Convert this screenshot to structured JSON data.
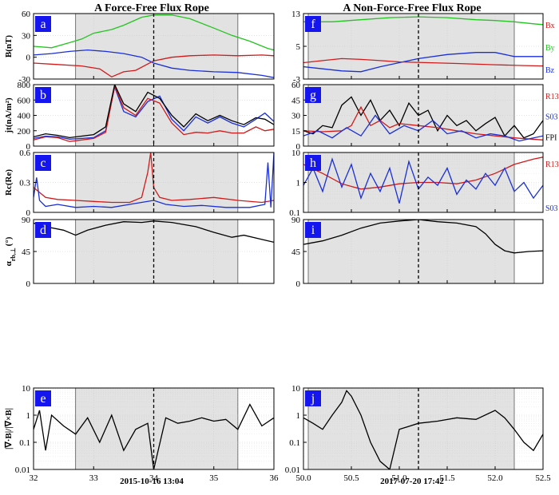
{
  "titles": {
    "left": "A Force-Free Flux Rope",
    "right": "A Non-Force-Free Flux Rope"
  },
  "xlabels": {
    "left": "2015-10-16 13:04",
    "right": "2017-07-20 17:42"
  },
  "colors": {
    "red": "#d11a1a",
    "green": "#22c41f",
    "blue": "#1a2fd6",
    "black": "#000000",
    "shade": "#e2e2e2",
    "label_bg": "#1515f0"
  },
  "chart_data": [
    {
      "id": "a",
      "type": "line",
      "column": "left",
      "row": 0,
      "label": "a",
      "ylabel": "B(nT)",
      "xlim": [
        32,
        36
      ],
      "ylim": [
        -30,
        60
      ],
      "yticks": [
        -30,
        0,
        30,
        60
      ],
      "shade": [
        32.7,
        35.4
      ],
      "vline": 34.0,
      "series": [
        {
          "color": "green",
          "x": [
            32,
            32.3,
            32.6,
            32.8,
            33.0,
            33.3,
            33.5,
            33.8,
            34.0,
            34.3,
            34.6,
            35.0,
            35.3,
            35.6,
            35.9,
            36.0
          ],
          "y": [
            15,
            13,
            20,
            25,
            33,
            38,
            44,
            55,
            58,
            58,
            53,
            40,
            30,
            22,
            12,
            10
          ]
        },
        {
          "color": "blue",
          "x": [
            32,
            32.3,
            32.6,
            32.9,
            33.2,
            33.5,
            33.8,
            34.0,
            34.3,
            34.6,
            35.0,
            35.4,
            35.8,
            36.0
          ],
          "y": [
            3,
            5,
            8,
            10,
            8,
            5,
            0,
            -8,
            -15,
            -18,
            -20,
            -21,
            -25,
            -28
          ]
        },
        {
          "color": "red",
          "x": [
            32,
            32.4,
            32.8,
            33.1,
            33.3,
            33.5,
            33.7,
            34.0,
            34.3,
            34.6,
            35.0,
            35.4,
            35.8,
            36.0
          ],
          "y": [
            -8,
            -10,
            -12,
            -16,
            -27,
            -20,
            -18,
            -5,
            0,
            2,
            3,
            2,
            3,
            2
          ]
        }
      ]
    },
    {
      "id": "b",
      "type": "line",
      "column": "left",
      "row": 1,
      "label": "b",
      "ylabel": "jt(nA/m²)",
      "xlim": [
        32,
        36
      ],
      "ylim": [
        0,
        800
      ],
      "yticks": [
        0,
        200,
        400,
        600,
        800
      ],
      "shade": [
        32.7,
        35.4
      ],
      "vline": 34.0,
      "series": [
        {
          "color": "blue",
          "x": [
            32,
            32.2,
            32.4,
            32.6,
            32.8,
            33.0,
            33.2,
            33.35,
            33.5,
            33.7,
            33.9,
            34.1,
            34.3,
            34.5,
            34.7,
            34.9,
            35.1,
            35.3,
            35.5,
            35.7,
            35.85,
            36.0
          ],
          "y": [
            100,
            130,
            120,
            90,
            100,
            110,
            200,
            770,
            450,
            380,
            580,
            650,
            350,
            200,
            380,
            300,
            380,
            300,
            250,
            350,
            430,
            320
          ]
        },
        {
          "color": "red",
          "x": [
            32,
            32.2,
            32.4,
            32.6,
            32.8,
            33.0,
            33.2,
            33.35,
            33.5,
            33.7,
            33.9,
            34.1,
            34.3,
            34.5,
            34.7,
            34.9,
            35.1,
            35.3,
            35.5,
            35.7,
            35.85,
            36.0
          ],
          "y": [
            80,
            120,
            110,
            60,
            80,
            100,
            180,
            780,
            500,
            400,
            620,
            560,
            300,
            150,
            180,
            170,
            200,
            170,
            170,
            250,
            200,
            220
          ]
        },
        {
          "color": "black",
          "x": [
            32,
            32.2,
            32.4,
            32.6,
            32.8,
            33.0,
            33.2,
            33.35,
            33.5,
            33.7,
            33.9,
            34.1,
            34.3,
            34.5,
            34.7,
            34.9,
            35.1,
            35.3,
            35.5,
            35.7,
            35.85,
            36.0
          ],
          "y": [
            120,
            160,
            140,
            110,
            130,
            150,
            250,
            800,
            550,
            450,
            700,
            620,
            400,
            250,
            420,
            330,
            400,
            330,
            280,
            370,
            350,
            280
          ]
        }
      ]
    },
    {
      "id": "c",
      "type": "line",
      "column": "left",
      "row": 2,
      "label": "c",
      "ylabel": "Rc(Re)",
      "xlim": [
        32,
        36
      ],
      "ylim": [
        0,
        0.6
      ],
      "yticks": [
        0,
        0.3,
        0.6
      ],
      "shade": [
        32.7,
        35.4
      ],
      "vline": 34.0,
      "series": [
        {
          "color": "red",
          "x": [
            32,
            32.1,
            32.2,
            32.4,
            32.7,
            33.0,
            33.3,
            33.6,
            33.8,
            33.9,
            33.95,
            34.0,
            34.1,
            34.3,
            34.6,
            35.0,
            35.4,
            35.8,
            36.0
          ],
          "y": [
            0.25,
            0.2,
            0.15,
            0.13,
            0.12,
            0.11,
            0.1,
            0.1,
            0.15,
            0.4,
            0.6,
            0.25,
            0.15,
            0.12,
            0.13,
            0.15,
            0.12,
            0.1,
            0.12
          ]
        },
        {
          "color": "blue",
          "x": [
            32,
            32.05,
            32.1,
            32.2,
            32.4,
            32.7,
            33.0,
            33.3,
            33.6,
            33.8,
            34.0,
            34.2,
            34.5,
            34.8,
            35.2,
            35.6,
            35.85,
            35.9,
            35.95,
            36.0
          ],
          "y": [
            0.15,
            0.35,
            0.12,
            0.06,
            0.08,
            0.05,
            0.06,
            0.05,
            0.08,
            0.1,
            0.12,
            0.08,
            0.06,
            0.07,
            0.05,
            0.05,
            0.08,
            0.5,
            0.05,
            0.6
          ]
        }
      ]
    },
    {
      "id": "d",
      "type": "line",
      "column": "left",
      "row": 3,
      "label": "d",
      "ylabel": "α (°)",
      "ylabel_parts": {
        "greek": "α",
        "sub": "rb,⊥",
        "unit": "(°)"
      },
      "xlim": [
        32,
        36
      ],
      "ylim": [
        0,
        90
      ],
      "yticks": [
        0,
        45,
        90
      ],
      "shade": [
        32.7,
        35.4
      ],
      "vline": 34.0,
      "series": [
        {
          "color": "black",
          "x": [
            32,
            32.2,
            32.5,
            32.7,
            32.9,
            33.2,
            33.5,
            33.8,
            34.0,
            34.3,
            34.7,
            35.0,
            35.3,
            35.5,
            35.8,
            36.0
          ],
          "y": [
            85,
            80,
            75,
            68,
            75,
            82,
            87,
            86,
            88,
            86,
            80,
            72,
            65,
            68,
            62,
            58
          ]
        }
      ]
    },
    {
      "id": "e",
      "type": "line",
      "column": "left",
      "row": 4,
      "label": "e",
      "scale": "log",
      "ylabel": "|∇·B|/|∇×B|",
      "xlim": [
        32,
        36
      ],
      "ylim": [
        0.01,
        10
      ],
      "yticks": [
        0.01,
        0.1,
        1,
        10
      ],
      "shade": [
        32.7,
        35.4
      ],
      "vline": 34.0,
      "series": [
        {
          "color": "black",
          "x": [
            32,
            32.1,
            32.2,
            32.3,
            32.5,
            32.7,
            32.9,
            33.1,
            33.3,
            33.5,
            33.7,
            33.9,
            34.0,
            34.2,
            34.4,
            34.6,
            34.8,
            35.0,
            35.2,
            35.4,
            35.6,
            35.8,
            36.0
          ],
          "y": [
            0.3,
            1.5,
            0.05,
            1.0,
            0.4,
            0.2,
            0.8,
            0.1,
            1.0,
            0.05,
            0.3,
            0.5,
            0.01,
            0.8,
            0.5,
            0.6,
            0.8,
            0.6,
            0.7,
            0.3,
            2.5,
            0.4,
            0.8
          ]
        }
      ]
    },
    {
      "id": "f",
      "type": "line",
      "column": "right",
      "row": 0,
      "label": "f",
      "ylabel": "",
      "xlim": [
        50,
        52.5
      ],
      "ylim": [
        -3,
        13
      ],
      "yticks": [
        -3,
        5,
        13
      ],
      "shade": [
        50.05,
        52.2
      ],
      "vline": 51.2,
      "legend": [
        {
          "text": "Bx",
          "color": "red"
        },
        {
          "text": "By",
          "color": "green"
        },
        {
          "text": "Bz",
          "color": "blue"
        }
      ],
      "series": [
        {
          "color": "green",
          "x": [
            50,
            50.3,
            50.6,
            50.9,
            51.2,
            51.5,
            51.8,
            52.0,
            52.2,
            52.4,
            52.5
          ],
          "y": [
            11,
            11,
            11.5,
            12,
            12.2,
            12,
            11.5,
            11.3,
            11,
            10.5,
            10.3
          ]
        },
        {
          "color": "blue",
          "x": [
            50,
            50.2,
            50.4,
            50.6,
            50.8,
            51.0,
            51.2,
            51.5,
            51.8,
            52.0,
            52.2,
            52.5
          ],
          "y": [
            0,
            -0.5,
            -1,
            -1.2,
            0,
            1,
            2,
            3,
            3.5,
            3.5,
            2.5,
            2.5
          ]
        },
        {
          "color": "red",
          "x": [
            50,
            50.2,
            50.4,
            50.6,
            50.8,
            51.0,
            51.3,
            51.6,
            52.0,
            52.3,
            52.5
          ],
          "y": [
            1,
            1.5,
            2,
            1.8,
            1.5,
            1.2,
            1,
            0.8,
            0.5,
            0.3,
            0.2
          ]
        }
      ]
    },
    {
      "id": "g",
      "type": "line",
      "column": "right",
      "row": 1,
      "label": "g",
      "ylabel": "",
      "xlim": [
        50,
        52.5
      ],
      "ylim": [
        0,
        60
      ],
      "yticks": [
        0,
        15,
        30,
        45,
        60
      ],
      "shade": [
        50.05,
        52.2
      ],
      "vline": 51.2,
      "legend": [
        {
          "text": "R13",
          "color": "red"
        },
        {
          "text": "S03",
          "color": "blue"
        },
        {
          "text": "FPI",
          "color": "black"
        }
      ],
      "series": [
        {
          "color": "black",
          "x": [
            50,
            50.1,
            50.2,
            50.3,
            50.4,
            50.5,
            50.6,
            50.7,
            50.8,
            50.9,
            51.0,
            51.1,
            51.2,
            51.3,
            51.4,
            51.5,
            51.6,
            51.7,
            51.8,
            51.9,
            52.0,
            52.1,
            52.2,
            52.3,
            52.4,
            52.5
          ],
          "y": [
            15,
            12,
            20,
            18,
            40,
            48,
            30,
            45,
            25,
            35,
            20,
            42,
            30,
            35,
            15,
            30,
            20,
            25,
            15,
            22,
            28,
            10,
            20,
            8,
            12,
            25
          ]
        },
        {
          "color": "red",
          "x": [
            50,
            50.2,
            50.4,
            50.5,
            50.6,
            50.7,
            50.8,
            50.9,
            51.0,
            51.2,
            51.4,
            51.6,
            51.8,
            52.0,
            52.2,
            52.5
          ],
          "y": [
            15,
            14,
            15,
            20,
            38,
            20,
            25,
            18,
            22,
            20,
            18,
            15,
            12,
            10,
            8,
            6
          ]
        },
        {
          "color": "blue",
          "x": [
            50,
            50.15,
            50.3,
            50.45,
            50.6,
            50.75,
            50.9,
            51.05,
            51.2,
            51.35,
            51.5,
            51.65,
            51.8,
            51.95,
            52.1,
            52.25,
            52.4,
            52.5
          ],
          "y": [
            10,
            15,
            8,
            18,
            10,
            30,
            12,
            20,
            15,
            25,
            12,
            15,
            8,
            12,
            10,
            5,
            8,
            10
          ]
        }
      ]
    },
    {
      "id": "h",
      "type": "line",
      "column": "right",
      "row": 2,
      "label": "h",
      "scale": "log",
      "ylabel": "",
      "xlim": [
        50,
        52.5
      ],
      "ylim": [
        0.1,
        10
      ],
      "yticks": [
        0.1,
        1,
        10
      ],
      "shade": [
        50.05,
        52.2
      ],
      "vline": 51.2,
      "legend": [
        {
          "text": "R13",
          "color": "red"
        },
        {
          "text": "S03",
          "color": "blue"
        }
      ],
      "series": [
        {
          "color": "red",
          "x": [
            50,
            50.2,
            50.4,
            50.6,
            50.8,
            51.0,
            51.2,
            51.4,
            51.6,
            51.8,
            52.0,
            52.2,
            52.4,
            52.5
          ],
          "y": [
            4,
            2,
            0.9,
            0.6,
            0.7,
            0.9,
            1.0,
            1.0,
            0.9,
            1.2,
            2,
            4,
            6,
            7
          ]
        },
        {
          "color": "blue",
          "x": [
            50,
            50.1,
            50.2,
            50.3,
            50.4,
            50.5,
            50.6,
            50.7,
            50.8,
            50.9,
            51.0,
            51.1,
            51.2,
            51.3,
            51.4,
            51.5,
            51.6,
            51.7,
            51.8,
            51.9,
            52.0,
            52.1,
            52.2,
            52.3,
            52.4,
            52.5
          ],
          "y": [
            0.8,
            3,
            0.5,
            6,
            0.7,
            4,
            0.3,
            2,
            0.5,
            3,
            0.2,
            5,
            0.6,
            1.5,
            0.8,
            3,
            0.4,
            1.2,
            0.6,
            2,
            0.8,
            3,
            0.5,
            1,
            0.3,
            0.8
          ]
        }
      ]
    },
    {
      "id": "i",
      "type": "line",
      "column": "right",
      "row": 3,
      "label": "i",
      "ylabel": "",
      "xlim": [
        50,
        52.5
      ],
      "ylim": [
        0,
        90
      ],
      "yticks": [
        0,
        45,
        90
      ],
      "shade": [
        50.05,
        52.2
      ],
      "vline": 51.2,
      "series": [
        {
          "color": "black",
          "x": [
            50,
            50.2,
            50.4,
            50.6,
            50.8,
            51.0,
            51.2,
            51.4,
            51.6,
            51.8,
            51.9,
            52.0,
            52.1,
            52.2,
            52.35,
            52.5
          ],
          "y": [
            55,
            60,
            68,
            78,
            85,
            88,
            90,
            87,
            85,
            80,
            70,
            55,
            46,
            43,
            45,
            46
          ]
        }
      ]
    },
    {
      "id": "j",
      "type": "line",
      "column": "right",
      "row": 4,
      "label": "j",
      "scale": "log",
      "ylabel": "",
      "xlim": [
        50,
        52.5
      ],
      "ylim": [
        0.01,
        10
      ],
      "yticks": [
        0.01,
        0.1,
        1,
        10
      ],
      "shade": [
        50.05,
        52.2
      ],
      "vline": 51.2,
      "series": [
        {
          "color": "black",
          "x": [
            50,
            50.1,
            50.2,
            50.3,
            50.4,
            50.45,
            50.5,
            50.6,
            50.7,
            50.8,
            50.9,
            51.0,
            51.2,
            51.4,
            51.6,
            51.8,
            52.0,
            52.1,
            52.2,
            52.3,
            52.4,
            52.5
          ],
          "y": [
            0.8,
            0.5,
            0.3,
            1.0,
            3.0,
            8.0,
            5.0,
            1.0,
            0.1,
            0.02,
            0.01,
            0.3,
            0.5,
            0.6,
            0.8,
            0.7,
            1.5,
            0.8,
            0.3,
            0.1,
            0.05,
            0.2
          ]
        }
      ]
    }
  ],
  "xticks": {
    "left": [
      32,
      33,
      34,
      35,
      36
    ],
    "right": [
      50.0,
      50.5,
      51.0,
      51.5,
      52.0,
      52.5
    ]
  }
}
